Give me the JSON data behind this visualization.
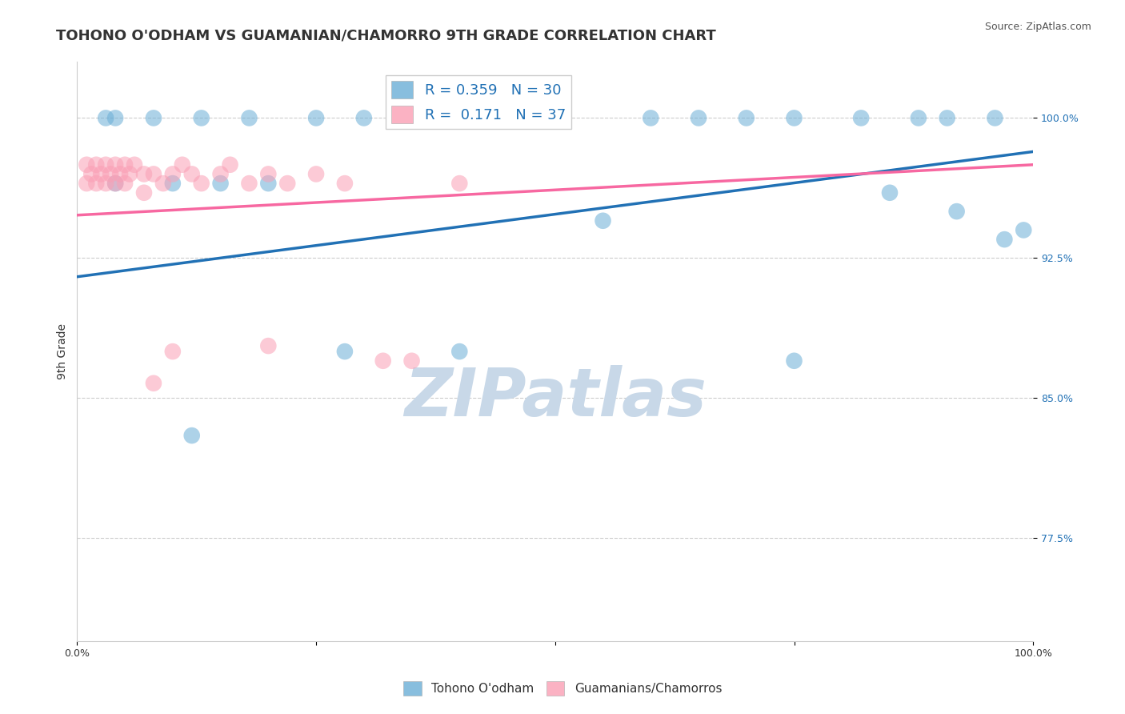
{
  "title": "TOHONO O'ODHAM VS GUAMANIAN/CHAMORRO 9TH GRADE CORRELATION CHART",
  "source_text": "Source: ZipAtlas.com",
  "xlabel": "",
  "ylabel": "9th Grade",
  "blue_label": "Tohono O'odham",
  "pink_label": "Guamanians/Chamorros",
  "blue_R": 0.359,
  "blue_N": 30,
  "pink_R": 0.171,
  "pink_N": 37,
  "blue_color": "#6baed6",
  "pink_color": "#fa9fb5",
  "blue_line_color": "#2171b5",
  "pink_line_color": "#f768a1",
  "xlim": [
    0.0,
    1.0
  ],
  "ylim": [
    0.72,
    1.03
  ],
  "yticks": [
    0.775,
    0.85,
    0.925,
    1.0
  ],
  "ytick_labels": [
    "77.5%",
    "85.0%",
    "92.5%",
    "100.0%"
  ],
  "xticks": [
    0.0,
    0.25,
    0.5,
    0.75,
    1.0
  ],
  "xtick_labels": [
    "0.0%",
    "",
    "",
    "",
    "100.0%"
  ],
  "watermark": "ZIPatlas",
  "blue_x": [
    0.03,
    0.04,
    0.08,
    0.13,
    0.18,
    0.25,
    0.3,
    0.35,
    0.5,
    0.6,
    0.65,
    0.7,
    0.75,
    0.82,
    0.88,
    0.91,
    0.96,
    0.04,
    0.1,
    0.15,
    0.2,
    0.28,
    0.4,
    0.55,
    0.75,
    0.85,
    0.92,
    0.97,
    0.99,
    0.12
  ],
  "blue_y": [
    1.0,
    1.0,
    1.0,
    1.0,
    1.0,
    1.0,
    1.0,
    1.0,
    1.0,
    1.0,
    1.0,
    1.0,
    1.0,
    1.0,
    1.0,
    1.0,
    1.0,
    0.965,
    0.965,
    0.965,
    0.965,
    0.875,
    0.875,
    0.945,
    0.87,
    0.96,
    0.95,
    0.935,
    0.94,
    0.83
  ],
  "pink_x": [
    0.01,
    0.01,
    0.015,
    0.02,
    0.02,
    0.025,
    0.03,
    0.03,
    0.035,
    0.04,
    0.04,
    0.045,
    0.05,
    0.05,
    0.055,
    0.06,
    0.07,
    0.07,
    0.08,
    0.09,
    0.1,
    0.11,
    0.12,
    0.13,
    0.15,
    0.16,
    0.18,
    0.2,
    0.22,
    0.25,
    0.28,
    0.32,
    0.35,
    0.4,
    0.2,
    0.1,
    0.08
  ],
  "pink_y": [
    0.975,
    0.965,
    0.97,
    0.975,
    0.965,
    0.97,
    0.975,
    0.965,
    0.97,
    0.975,
    0.965,
    0.97,
    0.975,
    0.965,
    0.97,
    0.975,
    0.97,
    0.96,
    0.97,
    0.965,
    0.97,
    0.975,
    0.97,
    0.965,
    0.97,
    0.975,
    0.965,
    0.97,
    0.965,
    0.97,
    0.965,
    0.87,
    0.87,
    0.965,
    0.878,
    0.875,
    0.858
  ],
  "blue_line_x0": 0.0,
  "blue_line_y0": 0.915,
  "blue_line_x1": 1.0,
  "blue_line_y1": 0.982,
  "pink_line_x0": 0.0,
  "pink_line_y0": 0.948,
  "pink_line_x1": 1.0,
  "pink_line_y1": 0.975,
  "grid_color": "#cccccc",
  "background_color": "#ffffff",
  "title_fontsize": 13,
  "axis_label_fontsize": 10,
  "tick_fontsize": 9,
  "legend_fontsize": 13,
  "watermark_color": "#c8d8e8",
  "watermark_fontsize": 60
}
